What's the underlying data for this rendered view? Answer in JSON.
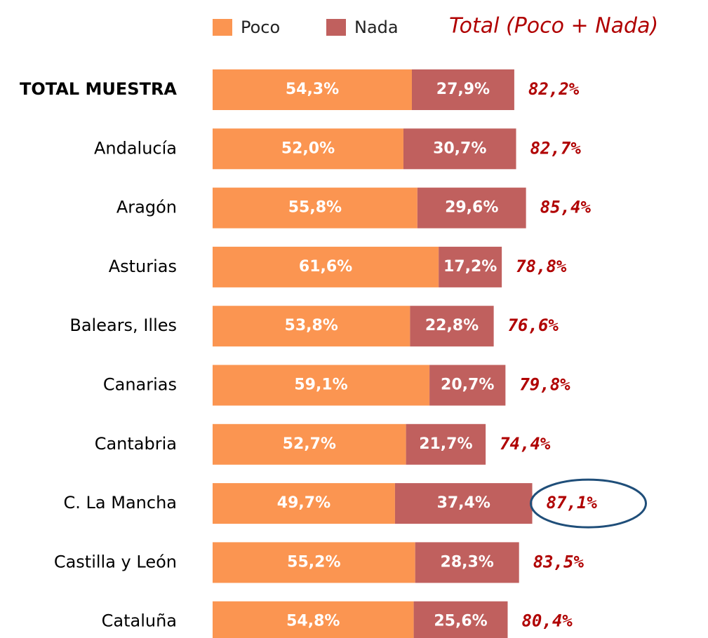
{
  "chart_data": {
    "type": "stacked-barh",
    "annotation": "Total (Poco + Nada)",
    "categories": [
      "TOTAL MUESTRA",
      "Andalucía",
      "Aragón",
      "Asturias",
      "Balears, Illes",
      "Canarias",
      "Cantabria",
      "C. La Mancha",
      "Castilla y León",
      "Cataluña"
    ],
    "series": [
      {
        "name": "Poco",
        "color": "#fb9551",
        "values": [
          54.3,
          52.0,
          55.8,
          61.6,
          53.8,
          59.1,
          52.7,
          49.7,
          55.2,
          54.8
        ],
        "value_labels": [
          "54,3%",
          "52,0%",
          "55,8%",
          "61,6%",
          "53,8%",
          "59,1%",
          "52,7%",
          "49,7%",
          "55,2%",
          "54,8%"
        ]
      },
      {
        "name": "Nada",
        "color": "#c0605e",
        "values": [
          27.9,
          30.7,
          29.6,
          17.2,
          22.8,
          20.7,
          21.7,
          37.4,
          28.3,
          25.6
        ],
        "value_labels": [
          "27,9%",
          "30,7%",
          "29,6%",
          "17,2%",
          "22,8%",
          "20,7%",
          "21,7%",
          "37,4%",
          "28,3%",
          "25,6%"
        ]
      }
    ],
    "totals": [
      82.2,
      82.7,
      85.4,
      78.8,
      76.6,
      79.8,
      74.4,
      87.1,
      83.5,
      80.4
    ],
    "total_labels": [
      "82,2%",
      "82,7%",
      "85,4%",
      "78,8%",
      "76,6%",
      "79,8%",
      "74,4%",
      "87,1%",
      "83,5%",
      "80,4%"
    ],
    "total_color": "#b00000"
  }
}
